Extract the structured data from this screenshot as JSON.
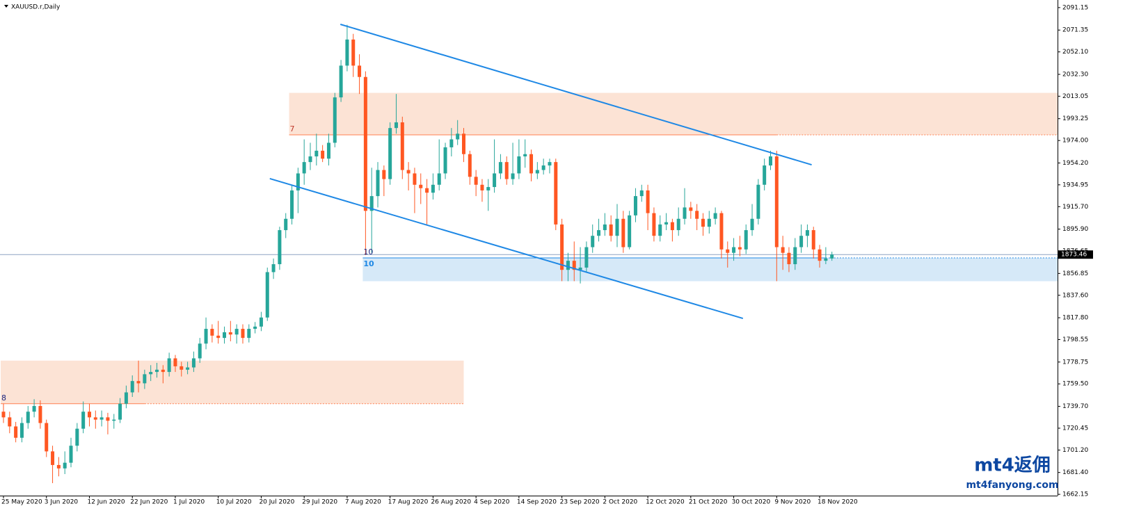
{
  "chart_data": {
    "type": "candlestick",
    "title": "XAUUSD.r,Daily",
    "categories": [
      "25 May 2020",
      null,
      null,
      null,
      null,
      null,
      null,
      "3 Jun 2020",
      null,
      null,
      null,
      null,
      null,
      null,
      "12 Jun 2020",
      null,
      null,
      null,
      null,
      null,
      null,
      "22 Jun 2020",
      null,
      null,
      null,
      null,
      null,
      null,
      "1 Jul 2020",
      null,
      null,
      null,
      null,
      null,
      null,
      "10 Jul 2020",
      null,
      null,
      null,
      null,
      null,
      null,
      "20 Jul 2020",
      null,
      null,
      null,
      null,
      null,
      null,
      "29 Jul 2020",
      null,
      null,
      null,
      null,
      null,
      null,
      "7 Aug 2020",
      null,
      null,
      null,
      null,
      null,
      null,
      "17 Aug 2020",
      null,
      null,
      null,
      null,
      null,
      null,
      "26 Aug 2020",
      null,
      null,
      null,
      null,
      null,
      null,
      "4 Sep 2020",
      null,
      null,
      null,
      null,
      null,
      null,
      "14 Sep 2020",
      null,
      null,
      null,
      null,
      null,
      null,
      "23 Sep 2020",
      null,
      null,
      null,
      null,
      null,
      null,
      "2 Oct 2020",
      null,
      null,
      null,
      null,
      null,
      null,
      "12 Oct 2020",
      null,
      null,
      null,
      null,
      null,
      null,
      "21 Oct 2020",
      null,
      null,
      null,
      null,
      null,
      null,
      "30 Oct 2020",
      null,
      null,
      null,
      null,
      null,
      null,
      "9 Nov 2020",
      null,
      null,
      null,
      null,
      null,
      null,
      "18 Nov 2020",
      null,
      null
    ],
    "open": [
      1735,
      1730,
      1722,
      1712,
      1725,
      1735,
      1740,
      1725,
      1700,
      1688,
      1685,
      1690,
      1705,
      1720,
      1735,
      1730,
      1728,
      1730,
      1727,
      1728,
      1742,
      1752,
      1762,
      1760,
      1768,
      1770,
      1772,
      1770,
      1782,
      1775,
      1772,
      1774,
      1782,
      1795,
      1808,
      1802,
      1800,
      1805,
      1803,
      1808,
      1800,
      1808,
      1810,
      1818,
      1858,
      1865,
      1895,
      1905,
      1930,
      1945,
      1955,
      1960,
      1965,
      1958,
      1972,
      2012,
      2040,
      2063,
      2040,
      2030,
      1912,
      1925,
      1948,
      1940,
      1985,
      1990,
      1948,
      1945,
      1935,
      1932,
      1928,
      1935,
      1945,
      1968,
      1975,
      1980,
      1962,
      1942,
      1935,
      1930,
      1933,
      1945,
      1955,
      1940,
      1945,
      1960,
      1962,
      1945,
      1948,
      1952,
      1955,
      1900,
      1860,
      1868,
      1860,
      1862,
      1880,
      1890,
      1895,
      1900,
      1890,
      1905,
      1880,
      1908,
      1925,
      1930,
      1910,
      1890,
      1900,
      1902,
      1895,
      1905,
      1915,
      1912,
      1905,
      1898,
      1905,
      1910,
      1878,
      1875,
      1880,
      1878,
      1895,
      1905,
      1935,
      1952,
      1960,
      1880,
      1875,
      1865,
      1880,
      1890,
      1895,
      1878,
      1868,
      1870
    ],
    "high": [
      1742,
      1735,
      1726,
      1730,
      1740,
      1746,
      1745,
      1728,
      1705,
      1695,
      1700,
      1712,
      1725,
      1744,
      1742,
      1736,
      1736,
      1734,
      1733,
      1747,
      1758,
      1767,
      1780,
      1772,
      1776,
      1778,
      1776,
      1787,
      1785,
      1779,
      1779,
      1788,
      1800,
      1818,
      1812,
      1815,
      1810,
      1815,
      1812,
      1812,
      1812,
      1814,
      1823,
      1862,
      1870,
      1898,
      1910,
      1935,
      1950,
      1975,
      1972,
      1980,
      1970,
      1980,
      2016,
      2045,
      2076,
      2068,
      2050,
      2035,
      1950,
      1955,
      1952,
      1990,
      2015,
      1995,
      1955,
      1950,
      1945,
      1940,
      1945,
      1975,
      1972,
      1985,
      1992,
      1985,
      1965,
      1948,
      1940,
      1940,
      1975,
      1962,
      1960,
      1972,
      1975,
      1975,
      1966,
      1955,
      1958,
      1958,
      1958,
      1905,
      1875,
      1885,
      1880,
      1885,
      1900,
      1905,
      1910,
      1908,
      1918,
      1912,
      1912,
      1932,
      1935,
      1935,
      1915,
      1908,
      1910,
      1905,
      1915,
      1932,
      1920,
      1918,
      1910,
      1912,
      1915,
      1912,
      1885,
      1888,
      1890,
      1900,
      1918,
      1940,
      1958,
      1965,
      1965,
      1890,
      1880,
      1888,
      1900,
      1900,
      1898,
      1882,
      1880,
      1876
    ],
    "low": [
      1725,
      1716,
      1708,
      1708,
      1720,
      1730,
      1720,
      1695,
      1672,
      1678,
      1680,
      1686,
      1700,
      1716,
      1722,
      1720,
      1722,
      1715,
      1720,
      1725,
      1738,
      1748,
      1752,
      1755,
      1762,
      1765,
      1760,
      1766,
      1770,
      1766,
      1768,
      1770,
      1778,
      1790,
      1796,
      1795,
      1795,
      1797,
      1795,
      1795,
      1796,
      1804,
      1806,
      1815,
      1852,
      1860,
      1888,
      1900,
      1910,
      1935,
      1948,
      1952,
      1955,
      1952,
      1968,
      2008,
      2035,
      2030,
      2015,
      1873,
      1875,
      1915,
      1925,
      1935,
      1980,
      1940,
      1930,
      1910,
      1918,
      1900,
      1922,
      1930,
      1940,
      1960,
      1970,
      1955,
      1935,
      1925,
      1920,
      1912,
      1928,
      1940,
      1935,
      1935,
      1940,
      1950,
      1938,
      1940,
      1944,
      1945,
      1895,
      1850,
      1850,
      1850,
      1848,
      1858,
      1875,
      1885,
      1890,
      1885,
      1880,
      1875,
      1878,
      1902,
      1920,
      1895,
      1885,
      1885,
      1895,
      1885,
      1890,
      1900,
      1905,
      1895,
      1890,
      1892,
      1900,
      1870,
      1862,
      1868,
      1872,
      1874,
      1890,
      1900,
      1930,
      1948,
      1850,
      1860,
      1858,
      1860,
      1875,
      1880,
      1870,
      1862,
      1865,
      1868
    ],
    "close": [
      1730,
      1722,
      1712,
      1725,
      1735,
      1740,
      1725,
      1700,
      1688,
      1685,
      1690,
      1705,
      1720,
      1735,
      1730,
      1728,
      1730,
      1727,
      1728,
      1742,
      1752,
      1762,
      1760,
      1768,
      1770,
      1772,
      1770,
      1782,
      1775,
      1772,
      1774,
      1782,
      1795,
      1808,
      1802,
      1800,
      1805,
      1803,
      1808,
      1800,
      1808,
      1810,
      1818,
      1858,
      1865,
      1895,
      1905,
      1930,
      1945,
      1955,
      1960,
      1965,
      1958,
      1972,
      2012,
      2040,
      2063,
      2040,
      2030,
      1912,
      1925,
      1948,
      1940,
      1985,
      1990,
      1948,
      1945,
      1935,
      1932,
      1928,
      1935,
      1945,
      1968,
      1975,
      1980,
      1962,
      1942,
      1935,
      1930,
      1933,
      1945,
      1955,
      1940,
      1945,
      1960,
      1962,
      1945,
      1948,
      1952,
      1955,
      1900,
      1860,
      1868,
      1860,
      1862,
      1880,
      1890,
      1895,
      1900,
      1890,
      1905,
      1880,
      1908,
      1925,
      1930,
      1910,
      1890,
      1900,
      1902,
      1895,
      1905,
      1915,
      1912,
      1905,
      1898,
      1905,
      1910,
      1878,
      1875,
      1880,
      1878,
      1895,
      1905,
      1935,
      1952,
      1960,
      1880,
      1875,
      1865,
      1880,
      1890,
      1895,
      1878,
      1868,
      1870,
      1873.46
    ],
    "bull_color": "#26a69a",
    "bear_color": "#ff5722",
    "ylim": [
      1661,
      2096
    ],
    "yticks": [
      2091.15,
      2071.35,
      {
        "value": 2052.1,
        "label": "2052.10"
      },
      {
        "value": 2032.3,
        "label": "2032.30"
      },
      2013.05,
      1993.25,
      {
        "value": 1974,
        "label": "1974.00"
      },
      {
        "value": 1954.2,
        "label": "1954.20"
      },
      1934.95,
      {
        "value": 1915.7,
        "label": "1915.70"
      },
      {
        "value": 1895.9,
        "label": "1895.90"
      },
      1876.65,
      1856.85,
      {
        "value": 1837.6,
        "label": "1837.60"
      },
      {
        "value": 1817.8,
        "label": "1817.80"
      },
      1798.55,
      1778.75,
      {
        "value": 1759.5,
        "label": "1759.50"
      },
      {
        "value": 1739.7,
        "label": "1739.70"
      },
      1720.45,
      {
        "value": 1701.2,
        "label": "1701.20"
      },
      {
        "value": 1681.4,
        "label": "1681.40"
      },
      1662.15
    ],
    "current_price": 1873.46,
    "current_price_color": "#8da4c4",
    "zones": [
      {
        "labels": [
          "7"
        ],
        "label_colors": [
          "#c0392b"
        ],
        "x_start": 47,
        "extend_right": true,
        "top": 2016,
        "bottom": 1979,
        "line_at": "bottom",
        "solid_until": 126,
        "color": "#fce3d5",
        "line_color": "#ff7f50"
      },
      {
        "labels": [
          "8"
        ],
        "label_colors": [
          "#1a237e"
        ],
        "x_start": 0,
        "x_end": 75,
        "top": 1780,
        "bottom": 1742,
        "line_at": "bottom",
        "solid_until": 23,
        "color": "#fce3d5",
        "line_color": "#ff7f50"
      },
      {
        "labels": [
          "10",
          "10"
        ],
        "label_colors": [
          "#1a237e",
          "#1e88e5"
        ],
        "x_start": 59,
        "extend_right": true,
        "top": 1870.5,
        "bottom": 1850,
        "line_at": "top",
        "solid_until": 134,
        "color": "#d6e9f8",
        "line_color": "#1e88e5"
      }
    ],
    "trend_lines": [
      {
        "x": [
          54.9,
          131.7
        ],
        "y": [
          2076.4,
          1952.6
        ],
        "color": "#1e88e5"
      },
      {
        "x": [
          43.4,
          120.5
        ],
        "y": [
          1940.4,
          1817.2
        ],
        "color": "#1e88e5"
      }
    ],
    "watermark": {
      "logo": "mt4返佣",
      "url": "mt4fanyong.com"
    }
  }
}
